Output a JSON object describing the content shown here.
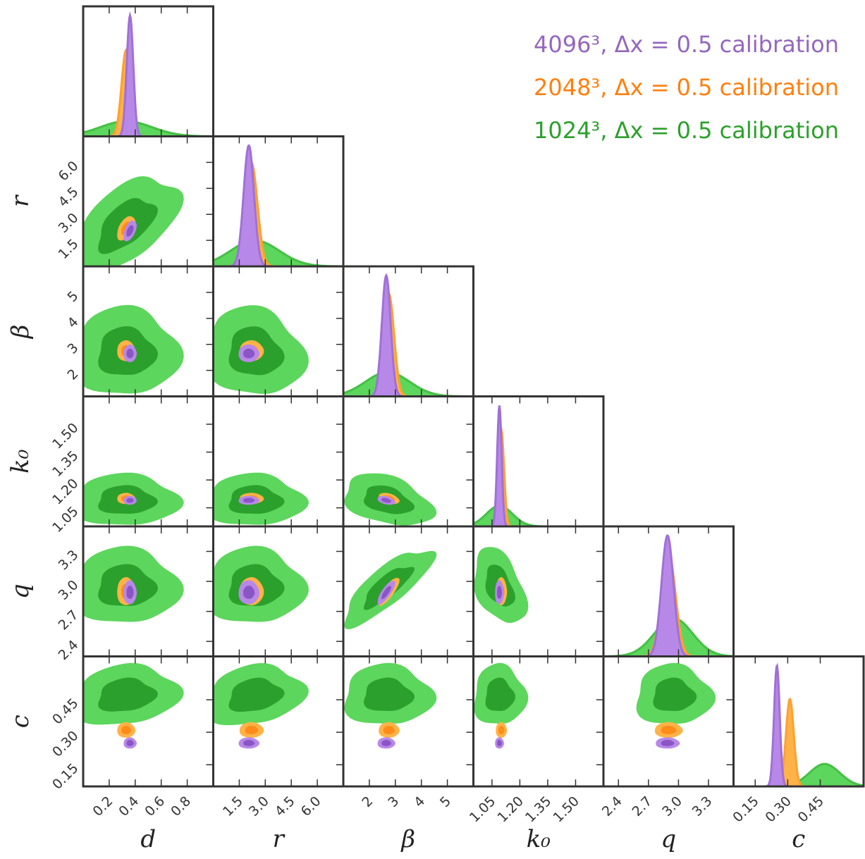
{
  "chart_data": {
    "type": "corner",
    "legend_placement": "top-right",
    "legend": [
      {
        "text": "4096³, Δx = 0.5 calibration",
        "color": "#9467bd"
      },
      {
        "text": "2048³, Δx = 0.5 calibration",
        "color": "#ff7f0e"
      },
      {
        "text": "1024³, Δx = 0.5 calibration",
        "color": "#2ca02c"
      }
    ],
    "colors": {
      "purple": "#b888e8",
      "purple_dark": "#8a55c4",
      "purple_line": "#a070d8",
      "orange": "#ffb347",
      "orange_dark": "#ff8c1a",
      "orange_line": "#ffa030",
      "green": "#5cd65c",
      "green_dark": "#2ca02c",
      "green_line": "#44c044",
      "frame": "#333333"
    },
    "parameters": [
      {
        "key": "d",
        "label": "d",
        "range": [
          0.0,
          1.0
        ],
        "ticks": [
          0.2,
          0.4,
          0.6,
          0.8
        ],
        "tick_labels": [
          "0.2",
          "0.4",
          "0.6",
          "0.8"
        ]
      },
      {
        "key": "r",
        "label": "r",
        "range": [
          0.0,
          7.5
        ],
        "ticks": [
          1.5,
          3.0,
          4.5,
          6.0
        ],
        "tick_labels": [
          "1.5",
          "3.0",
          "4.5",
          "6.0"
        ]
      },
      {
        "key": "beta",
        "label": "β",
        "range": [
          1.0,
          6.0
        ],
        "ticks": [
          2,
          3,
          4,
          5
        ],
        "tick_labels": [
          "2",
          "3",
          "4",
          "5"
        ]
      },
      {
        "key": "k0",
        "label": "k₀",
        "range": [
          0.95,
          1.65
        ],
        "ticks": [
          1.05,
          1.2,
          1.35,
          1.5
        ],
        "tick_labels": [
          "1.05",
          "1.20",
          "1.35",
          "1.50"
        ]
      },
      {
        "key": "q",
        "label": "q",
        "range": [
          2.25,
          3.55
        ],
        "ticks": [
          2.4,
          2.7,
          3.0,
          3.3
        ],
        "tick_labels": [
          "2.4",
          "2.7",
          "3.0",
          "3.3"
        ]
      },
      {
        "key": "c",
        "label": "c",
        "range": [
          0.05,
          0.65
        ],
        "ticks": [
          0.15,
          0.3,
          0.45
        ],
        "tick_labels": [
          "0.15",
          "0.30",
          "0.45"
        ]
      }
    ],
    "runs": [
      {
        "id": "1024",
        "color_key": "green",
        "mean": {
          "d": 0.33,
          "r": 2.4,
          "beta": 2.7,
          "k0": 1.09,
          "q": 2.95,
          "c": 0.47
        },
        "sigma": {
          "d": 0.2,
          "r": 1.4,
          "beta": 0.85,
          "k0": 0.07,
          "q": 0.19,
          "c": 0.07
        },
        "corr": {
          "d-r": 0.55,
          "d-beta": 0.0,
          "r-beta": -0.1,
          "beta-k0": -0.35,
          "beta-q": 0.8,
          "k0-q": -0.4,
          "d-c": 0.15,
          "r-c": 0.2
        }
      },
      {
        "id": "2048",
        "color_key": "orange",
        "mean": {
          "d": 0.33,
          "r": 2.2,
          "beta": 2.75,
          "k0": 1.1,
          "q": 2.9,
          "c": 0.31
        },
        "sigma": {
          "d": 0.035,
          "r": 0.35,
          "beta": 0.2,
          "k0": 0.015,
          "q": 0.07,
          "c": 0.018
        },
        "corr": {
          "d-r": 0.5,
          "beta-q": 0.8,
          "beta-k0": -0.4
        }
      },
      {
        "id": "4096",
        "color_key": "purple",
        "mean": {
          "d": 0.36,
          "r": 2.05,
          "beta": 2.65,
          "k0": 1.09,
          "q": 2.89,
          "c": 0.25
        },
        "sigma": {
          "d": 0.025,
          "r": 0.3,
          "beta": 0.17,
          "k0": 0.012,
          "q": 0.06,
          "c": 0.013
        },
        "corr": {
          "d-r": 0.5,
          "beta-q": 0.8,
          "beta-k0": -0.4
        }
      }
    ]
  }
}
